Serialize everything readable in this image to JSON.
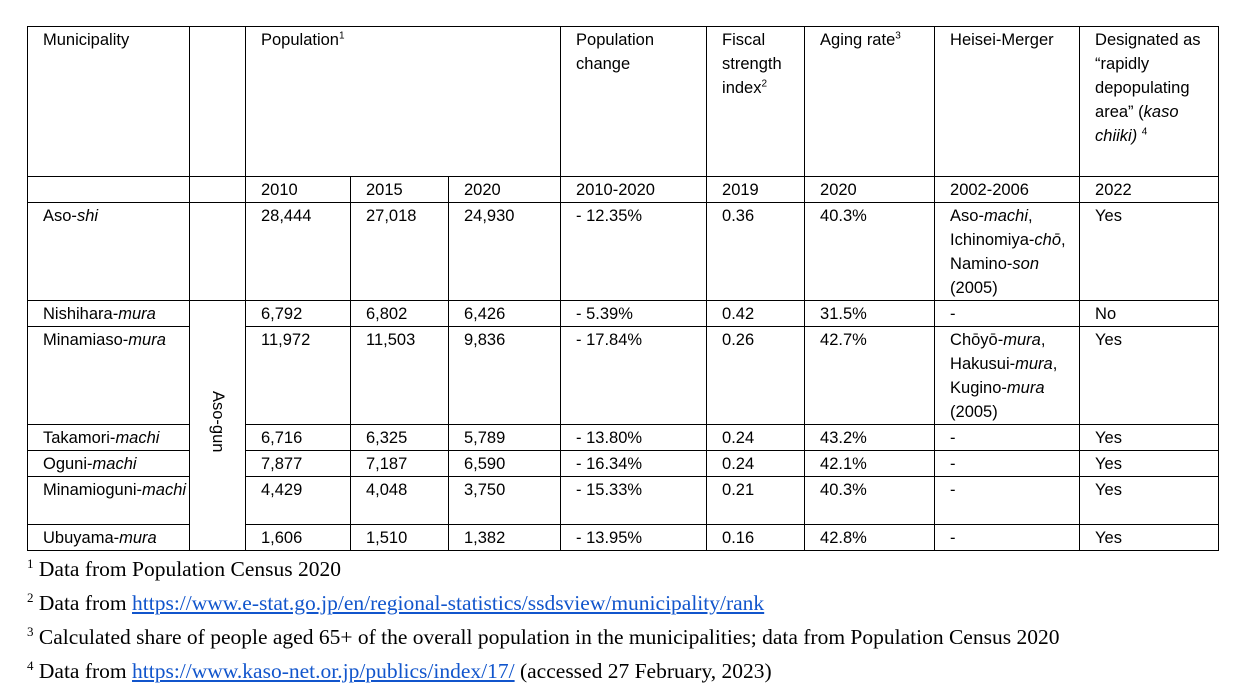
{
  "header": {
    "municipality": "Municipality",
    "population": "Population",
    "population_sup": "1",
    "population_change": "Population change",
    "fiscal_line1": "Fiscal strength",
    "fiscal_line2": "index",
    "fiscal_sup": "2",
    "aging": "Aging rate",
    "aging_sup": "3",
    "merger": "Heisei-Merger",
    "designated_line1": "Designated as “rapidly depopulating area” (",
    "designated_italic": "kaso chiiki)",
    "designated_sup": "4"
  },
  "subheader": {
    "p2010": "2010",
    "p2015": "2015",
    "p2020": "2020",
    "change": "2010-2020",
    "fiscal": "2019",
    "aging": "2020",
    "merger": "2002-2006",
    "designated": "2022"
  },
  "gun_label": "Aso-gun",
  "rows": [
    {
      "name_plain": "Aso-",
      "name_italic": "shi",
      "p2010": "28,444",
      "p2015": "27,018",
      "p2020": "24,930",
      "change": "- 12.35%",
      "fiscal": "0.36",
      "aging": "40.3%",
      "merger_parts": [
        "Aso-",
        "machi",
        ", Ichinomiya-",
        "chō",
        ", Namino-",
        "son",
        " (2005)"
      ],
      "designated": "Yes"
    },
    {
      "name_plain": "Nishihara-",
      "name_italic": "mura",
      "p2010": "6,792",
      "p2015": "6,802",
      "p2020": "6,426",
      "change": "- 5.39%",
      "fiscal": "0.42",
      "aging": "31.5%",
      "merger": "-",
      "designated": "No"
    },
    {
      "name_plain": "Minamiaso-",
      "name_italic": "mura",
      "p2010": "11,972",
      "p2015": "11,503",
      "p2020": "9,836",
      "change": "- 17.84%",
      "fiscal": "0.26",
      "aging": "42.7%",
      "merger_parts": [
        "Chōyō-",
        "mura",
        ", Hakusui-",
        "mura",
        ", Kugino-",
        "mura",
        " (2005)"
      ],
      "designated": "Yes"
    },
    {
      "name_plain": "Takamori-",
      "name_italic": "machi",
      "p2010": "6,716",
      "p2015": "6,325",
      "p2020": "5,789",
      "change": "- 13.80%",
      "fiscal": "0.24",
      "aging": "43.2%",
      "merger": "-",
      "designated": "Yes"
    },
    {
      "name_plain": "Oguni-",
      "name_italic": "machi",
      "p2010": "7,877",
      "p2015": "7,187",
      "p2020": "6,590",
      "change": "- 16.34%",
      "fiscal": "0.24",
      "aging": "42.1%",
      "merger": "-",
      "designated": "Yes"
    },
    {
      "name_plain": "Minamioguni-",
      "name_italic": "machi",
      "p2010": "4,429",
      "p2015": "4,048",
      "p2020": "3,750",
      "change": "- 15.33%",
      "fiscal": "0.21",
      "aging": "40.3%",
      "merger": "-",
      "designated": "Yes"
    },
    {
      "name_plain": "Ubuyama-",
      "name_italic": "mura",
      "p2010": "1,606",
      "p2015": "1,510",
      "p2020": "1,382",
      "change": "- 13.95%",
      "fiscal": "0.16",
      "aging": "42.8%",
      "merger": "-",
      "designated": "Yes"
    }
  ],
  "footnotes": [
    {
      "sup": "1",
      "text": " Data from Population Census 2020"
    },
    {
      "sup": "2",
      "text": " Data from ",
      "link": "https://www.e-stat.go.jp/en/regional-statistics/ssdsview/municipality/rank"
    },
    {
      "sup": "3",
      "text": " Calculated share of people aged 65+ of the overall population in the municipalities; data from Population Census 2020"
    },
    {
      "sup": "4",
      "text": " Data from ",
      "link": "https://www.kaso-net.or.jp/publics/index/17/",
      "after": " (accessed 27 February, 2023)"
    }
  ]
}
